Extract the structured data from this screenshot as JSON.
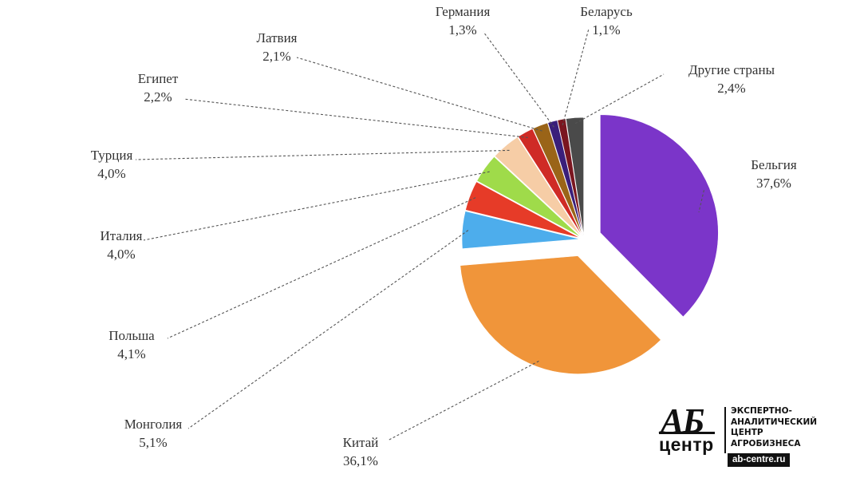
{
  "chart_data": {
    "type": "pie",
    "title": "",
    "slices": [
      {
        "label": "Бельгия",
        "value": 37.6,
        "value_label": "37,6%",
        "color": "#7b35c9"
      },
      {
        "label": "Китай",
        "value": 36.1,
        "value_label": "36,1%",
        "color": "#f0953a"
      },
      {
        "label": "Монголия",
        "value": 5.1,
        "value_label": "5,1%",
        "color": "#4dadec"
      },
      {
        "label": "Польша",
        "value": 4.1,
        "value_label": "4,1%",
        "color": "#e63b28"
      },
      {
        "label": "Италия",
        "value": 4.0,
        "value_label": "4,0%",
        "color": "#9fdb4a"
      },
      {
        "label": "Турция",
        "value": 4.0,
        "value_label": "4,0%",
        "color": "#f6cda6"
      },
      {
        "label": "Египет",
        "value": 2.2,
        "value_label": "2,2%",
        "color": "#cf2b26"
      },
      {
        "label": "Латвия",
        "value": 2.1,
        "value_label": "2,1%",
        "color": "#9a6418"
      },
      {
        "label": "Германия",
        "value": 1.3,
        "value_label": "1,3%",
        "color": "#3a1f7a"
      },
      {
        "label": "Беларусь",
        "value": 1.1,
        "value_label": "1,1%",
        "color": "#7a1620"
      },
      {
        "label": "Другие страны",
        "value": 2.4,
        "value_label": "2,4%",
        "color": "#4a4a4a"
      }
    ],
    "exploded": [
      "Бельгия",
      "Китай"
    ],
    "legend": "none",
    "labels": "outside-with-dashed-leaders"
  },
  "logo": {
    "mark_top": "АБ",
    "mark_bottom": "центр",
    "lines": [
      "ЭКСПЕРТНО-",
      "АНАЛИТИЧЕСКИЙ",
      "ЦЕНТР",
      "АГРОБИЗНЕСА"
    ],
    "url": "ab-centre.ru"
  }
}
